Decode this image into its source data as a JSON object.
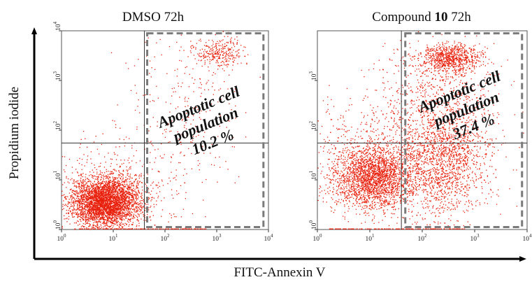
{
  "chart_data": [
    {
      "type": "scatter",
      "title_prefix": "DMSO 72h",
      "title_bold": "",
      "title_suffix": "",
      "xlabel": "FITC-Annexin V",
      "ylabel": "Propidium iodide",
      "x_scale": "log",
      "y_scale": "log",
      "xlim": [
        1,
        10000
      ],
      "ylim": [
        1,
        10000
      ],
      "x_ticks": [
        1,
        10,
        100,
        1000,
        10000
      ],
      "y_ticks": [
        1,
        10,
        100,
        1000,
        10000
      ],
      "x_tick_exponents": [
        "0",
        "1",
        "2",
        "3",
        "4"
      ],
      "y_tick_exponents": [
        "0",
        "1",
        "2",
        "3",
        "4"
      ],
      "quadrant_gates": {
        "x": 40,
        "y": 55
      },
      "gate_box_x_range": [
        40,
        8000
      ],
      "gate_box_y_range": [
        1.05,
        9500
      ],
      "annotation_lines": [
        "Apoptotic cell",
        "population",
        "10.2 %"
      ],
      "apoptotic_percent": 10.2,
      "marker_color": "#e8200c",
      "clusters": [
        {
          "mx": 0.85,
          "my": 0.55,
          "sx": 0.32,
          "sy": 0.24,
          "n": 3400
        },
        {
          "mx": 0.9,
          "my": 0.7,
          "sx": 0.6,
          "sy": 0.45,
          "n": 700
        },
        {
          "mx": 3.05,
          "my": 3.55,
          "sx": 0.22,
          "sy": 0.16,
          "n": 300
        },
        {
          "mx": 2.4,
          "my": 2.2,
          "sx": 0.6,
          "sy": 0.9,
          "n": 300
        }
      ]
    },
    {
      "type": "scatter",
      "title_prefix": "Compound ",
      "title_bold": "10",
      "title_suffix": " 72h",
      "xlabel": "FITC-Annexin V",
      "ylabel": "Propidium iodide",
      "x_scale": "log",
      "y_scale": "log",
      "xlim": [
        1,
        10000
      ],
      "ylim": [
        1,
        10000
      ],
      "x_ticks": [
        1,
        10,
        100,
        1000,
        10000
      ],
      "y_ticks": [
        1,
        10,
        100,
        1000
      ],
      "x_tick_exponents": [
        "0",
        "1",
        "2",
        "3",
        "4"
      ],
      "y_tick_exponents": [
        "0",
        "1",
        "2",
        "3"
      ],
      "quadrant_gates": {
        "x": 40,
        "y": 55
      },
      "gate_box_x_range": [
        42,
        8000
      ],
      "gate_box_y_range": [
        1.05,
        9500
      ],
      "annotation_lines": [
        "Apoptotic cell",
        "population",
        "37.4 %"
      ],
      "apoptotic_percent": 37.4,
      "marker_color": "#e8200c",
      "clusters": [
        {
          "mx": 1.05,
          "my": 1.05,
          "sx": 0.38,
          "sy": 0.32,
          "n": 2400
        },
        {
          "mx": 2.35,
          "my": 1.3,
          "sx": 0.45,
          "sy": 0.55,
          "n": 1500
        },
        {
          "mx": 2.55,
          "my": 3.45,
          "sx": 0.28,
          "sy": 0.14,
          "n": 800
        },
        {
          "mx": 2.3,
          "my": 2.4,
          "sx": 0.55,
          "sy": 0.7,
          "n": 900
        },
        {
          "mx": 0.9,
          "my": 1.8,
          "sx": 0.6,
          "sy": 0.5,
          "n": 300
        }
      ]
    }
  ],
  "figure": {
    "x_axis_label": "FITC-Annexin V",
    "y_axis_label": "Propidium iodide",
    "tick_base": "10"
  }
}
